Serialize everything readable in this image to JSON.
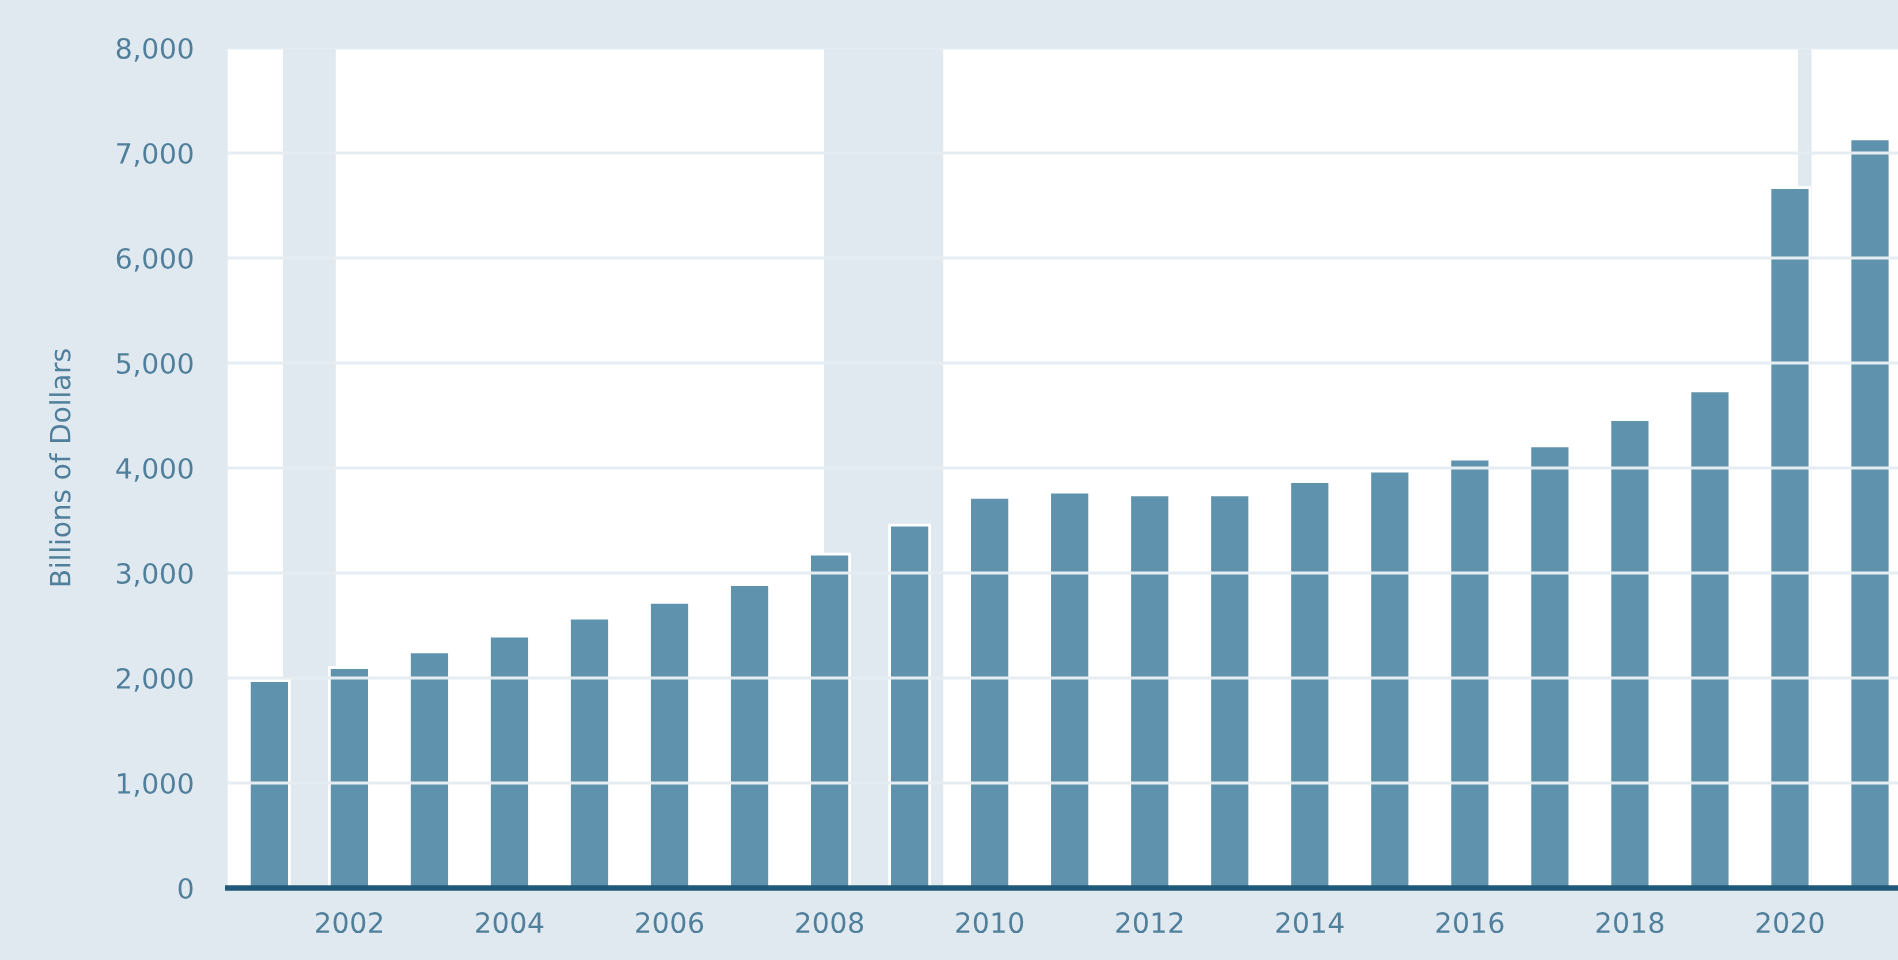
{
  "chart_data": {
    "type": "bar",
    "ylabel": "Billions of Dollars",
    "x": [
      2001,
      2002,
      2003,
      2004,
      2005,
      2006,
      2007,
      2008,
      2009,
      2010,
      2011,
      2012,
      2013,
      2014,
      2015,
      2016,
      2017,
      2018,
      2019,
      2020,
      2021
    ],
    "series": [
      {
        "color": "#5f93ad",
        "values": [
          1975,
          2100,
          2250,
          2400,
          2570,
          2720,
          2890,
          3180,
          3455,
          3720,
          3770,
          3745,
          3745,
          3870,
          3970,
          4085,
          4210,
          4460,
          4735,
          6670,
          7135
        ]
      }
    ],
    "xlim": [
      2000.48,
      2021.35
    ],
    "xticks": [
      2002,
      2004,
      2006,
      2008,
      2010,
      2012,
      2014,
      2016,
      2018,
      2020
    ],
    "ylim": [
      0,
      8000
    ],
    "yticks": [
      {
        "value": 0,
        "label": "0"
      },
      {
        "value": 1000,
        "label": "1,000"
      },
      {
        "value": 2000,
        "label": "2,000"
      },
      {
        "value": 3000,
        "label": "3,000"
      },
      {
        "value": 4000,
        "label": "4,000"
      },
      {
        "value": 5000,
        "label": "5,000"
      },
      {
        "value": 6000,
        "label": "6,000"
      },
      {
        "value": 7000,
        "label": "7,000"
      },
      {
        "value": 8000,
        "label": "8,000"
      }
    ],
    "bands": [
      {
        "axis": "x",
        "from": 2001.17,
        "to": 2001.83,
        "color": "#e1e9f0"
      },
      {
        "axis": "x",
        "from": 2007.93,
        "to": 2009.42,
        "color": "#e1e9f0"
      },
      {
        "axis": "x",
        "from": 2020.1,
        "to": 2020.27,
        "color": "#e1e9f0"
      }
    ],
    "grid": "y",
    "legend": false
  }
}
